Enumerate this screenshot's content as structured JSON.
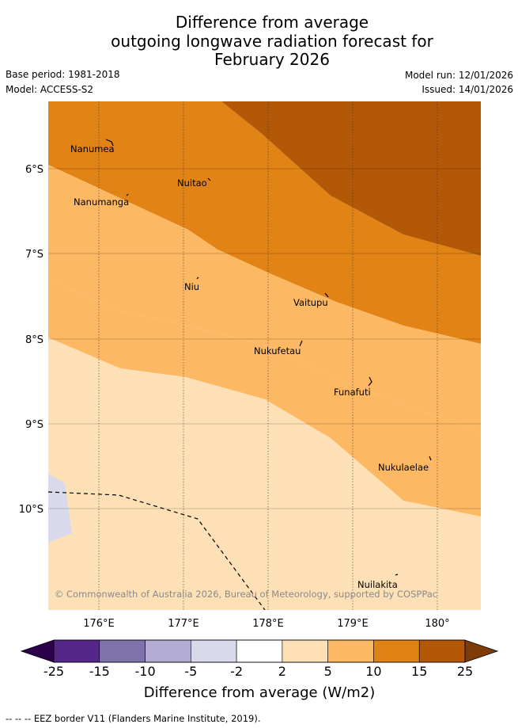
{
  "header": {
    "title_lines": [
      "Difference from average",
      "outgoing longwave radiation forecast for",
      "February 2026"
    ],
    "base_period": "Base period: 1981-2018",
    "model": "Model: ACCESS-S2",
    "model_run": "Model run: 12/01/2026",
    "issued": "Issued: 14/01/2026"
  },
  "map": {
    "lat_labels": [
      "6°S",
      "7°S",
      "8°S",
      "9°S",
      "10°S"
    ],
    "lon_labels": [
      "176°E",
      "177°E",
      "178°E",
      "179°E",
      "180°"
    ],
    "places": [
      "Nanumea",
      "Nuitao",
      "Nanumanga",
      "Niu",
      "Vaitupu",
      "Nukufetau",
      "Funafuti",
      "Nukulaelae",
      "Nuilakita"
    ],
    "copyright": "© Commonwealth of Australia 2026, Bureau of Meteorology, supported by COSPPac",
    "colors": {
      "c10_15": "#e18315",
      "c15_25": "#b35806",
      "c5_10": "#fdb863",
      "c2_5": "#fee0b6",
      "cm5_m2": "#d8daeb"
    }
  },
  "colorbar": {
    "ticks": [
      "-25",
      "-15",
      "-10",
      "-5",
      "-2",
      "2",
      "5",
      "10",
      "15",
      "25"
    ],
    "colors": [
      "#542788",
      "#8073ac",
      "#b2abd2",
      "#d8daeb",
      "#ffffff",
      "#fee0b6",
      "#fdb863",
      "#e08214",
      "#b35806"
    ],
    "under_color": "#2d004b",
    "over_color": "#7f3b08",
    "label": "Difference from average (W/m2)"
  },
  "footer": {
    "eez_note": "--  --  -- EEZ border V11 (Flanders Marine Institute, 2019)."
  }
}
